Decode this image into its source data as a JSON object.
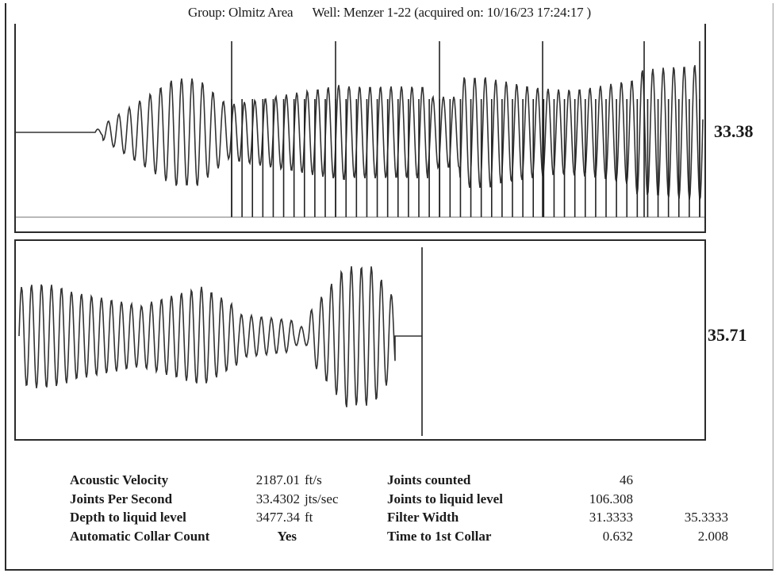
{
  "header": {
    "group": "Group: Olmitz Area",
    "well": "Well: Menzer 1-22 (acquired on: 10/16/23 17:24:17 )"
  },
  "chart_data": [
    {
      "type": "line",
      "panel": "top",
      "description_value_label": "33.38",
      "collar_marker_count": 46,
      "tall_marker_count": 5
    },
    {
      "type": "line",
      "panel": "bottom",
      "description_value_label": "35.71"
    }
  ],
  "side_values": {
    "top": "33.38",
    "bottom": "35.71"
  },
  "stats": {
    "rows": [
      {
        "label": "Acoustic Velocity",
        "value": "2187.01",
        "unit": "ft/s",
        "label2": "Joints counted",
        "value2": "46",
        "value3": ""
      },
      {
        "label": "Joints Per Second",
        "value": "33.4302",
        "unit": "jts/sec",
        "label2": "Joints to liquid level",
        "value2": "106.308",
        "value3": ""
      },
      {
        "label": "Depth to liquid level",
        "value": "3477.34",
        "unit": "ft",
        "label2": "Filter Width",
        "value2": "31.3333",
        "value3": "35.3333"
      },
      {
        "label": "Automatic Collar Count",
        "value": "Yes",
        "unit": "",
        "label2": "Time to 1st Collar",
        "value2": "0.632",
        "value3": "2.008"
      }
    ]
  }
}
